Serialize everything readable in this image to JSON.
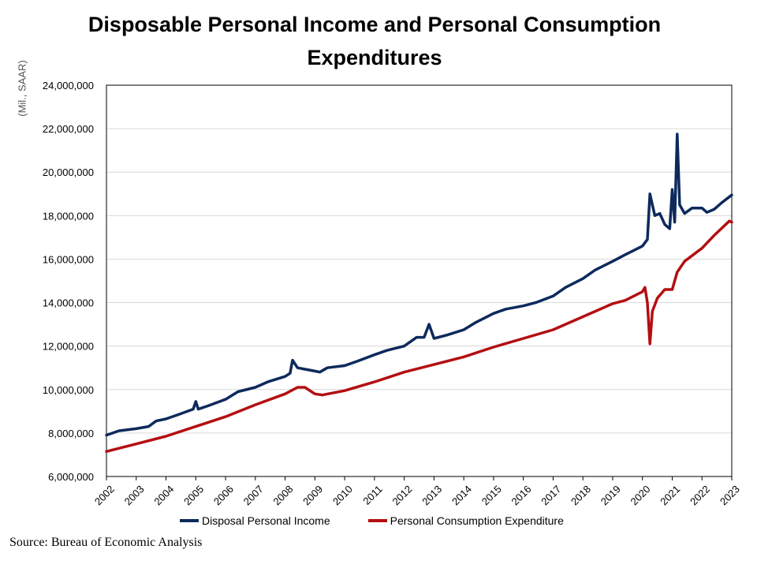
{
  "chart_data": {
    "type": "line",
    "title": "Disposable Personal Income and Personal Consumption Expenditures",
    "title_line1": "Disposable Personal Income and Personal Consumption",
    "title_line2": "Expenditures",
    "ylabel": "(Mil., SAAR)",
    "xlabel": "",
    "ylim": [
      6000000,
      24000000
    ],
    "yticks": [
      "6,000,000",
      "8,000,000",
      "10,000,000",
      "12,000,000",
      "14,000,000",
      "16,000,000",
      "18,000,000",
      "20,000,000",
      "22,000,000",
      "24,000,000"
    ],
    "ytick_values": [
      6000000,
      8000000,
      10000000,
      12000000,
      14000000,
      16000000,
      18000000,
      20000000,
      22000000,
      24000000
    ],
    "xlim": [
      "2002-01",
      "2023-01"
    ],
    "xticks": [
      "2002",
      "2003",
      "2004",
      "2005",
      "2006",
      "2007",
      "2008",
      "2009",
      "2010",
      "2011",
      "2012",
      "2013",
      "2014",
      "2015",
      "2016",
      "2017",
      "2018",
      "2019",
      "2020",
      "2021",
      "2022",
      "2023"
    ],
    "grid": true,
    "legend_position": "bottom",
    "series": [
      {
        "name": "Disposal Personal Income",
        "color": "#0d2a5c",
        "points": [
          [
            "2002-01",
            7900000
          ],
          [
            "2002-06",
            8100000
          ],
          [
            "2003-01",
            8200000
          ],
          [
            "2003-06",
            8300000
          ],
          [
            "2003-09",
            8550000
          ],
          [
            "2004-01",
            8650000
          ],
          [
            "2004-06",
            8850000
          ],
          [
            "2004-12",
            9100000
          ],
          [
            "2005-01",
            9450000
          ],
          [
            "2005-02",
            9100000
          ],
          [
            "2005-06",
            9250000
          ],
          [
            "2006-01",
            9550000
          ],
          [
            "2006-06",
            9900000
          ],
          [
            "2007-01",
            10100000
          ],
          [
            "2007-06",
            10350000
          ],
          [
            "2008-01",
            10600000
          ],
          [
            "2008-03",
            10750000
          ],
          [
            "2008-04",
            11350000
          ],
          [
            "2008-06",
            11000000
          ],
          [
            "2009-01",
            10850000
          ],
          [
            "2009-03",
            10800000
          ],
          [
            "2009-06",
            11000000
          ],
          [
            "2010-01",
            11100000
          ],
          [
            "2010-06",
            11300000
          ],
          [
            "2011-01",
            11600000
          ],
          [
            "2011-06",
            11800000
          ],
          [
            "2012-01",
            12000000
          ],
          [
            "2012-06",
            12400000
          ],
          [
            "2012-09",
            12400000
          ],
          [
            "2012-11",
            13000000
          ],
          [
            "2013-01",
            12350000
          ],
          [
            "2013-06",
            12500000
          ],
          [
            "2014-01",
            12750000
          ],
          [
            "2014-06",
            13100000
          ],
          [
            "2015-01",
            13500000
          ],
          [
            "2015-06",
            13700000
          ],
          [
            "2016-01",
            13850000
          ],
          [
            "2016-06",
            14000000
          ],
          [
            "2017-01",
            14300000
          ],
          [
            "2017-06",
            14700000
          ],
          [
            "2018-01",
            15100000
          ],
          [
            "2018-06",
            15500000
          ],
          [
            "2019-01",
            15900000
          ],
          [
            "2019-06",
            16200000
          ],
          [
            "2020-01",
            16600000
          ],
          [
            "2020-03",
            16900000
          ],
          [
            "2020-04",
            19000000
          ],
          [
            "2020-06",
            18000000
          ],
          [
            "2020-08",
            18100000
          ],
          [
            "2020-10",
            17600000
          ],
          [
            "2020-12",
            17400000
          ],
          [
            "2021-01",
            19200000
          ],
          [
            "2021-02",
            17700000
          ],
          [
            "2021-03",
            21750000
          ],
          [
            "2021-04",
            18500000
          ],
          [
            "2021-06",
            18100000
          ],
          [
            "2021-09",
            18350000
          ],
          [
            "2022-01",
            18350000
          ],
          [
            "2022-03",
            18150000
          ],
          [
            "2022-06",
            18300000
          ],
          [
            "2022-09",
            18600000
          ],
          [
            "2023-01",
            18950000
          ]
        ]
      },
      {
        "name": "Personal Consumption Expenditure",
        "color": "#b30f12",
        "points": [
          [
            "2002-01",
            7150000
          ],
          [
            "2003-01",
            7500000
          ],
          [
            "2004-01",
            7850000
          ],
          [
            "2005-01",
            8300000
          ],
          [
            "2006-01",
            8750000
          ],
          [
            "2007-01",
            9300000
          ],
          [
            "2008-01",
            9800000
          ],
          [
            "2008-06",
            10100000
          ],
          [
            "2008-09",
            10100000
          ],
          [
            "2009-01",
            9800000
          ],
          [
            "2009-04",
            9750000
          ],
          [
            "2010-01",
            9950000
          ],
          [
            "2011-01",
            10350000
          ],
          [
            "2012-01",
            10800000
          ],
          [
            "2013-01",
            11150000
          ],
          [
            "2014-01",
            11500000
          ],
          [
            "2015-01",
            11950000
          ],
          [
            "2016-01",
            12350000
          ],
          [
            "2017-01",
            12750000
          ],
          [
            "2018-01",
            13350000
          ],
          [
            "2019-01",
            13950000
          ],
          [
            "2019-06",
            14100000
          ],
          [
            "2020-01",
            14500000
          ],
          [
            "2020-02",
            14700000
          ],
          [
            "2020-03",
            14000000
          ],
          [
            "2020-04",
            12100000
          ],
          [
            "2020-05",
            13600000
          ],
          [
            "2020-07",
            14200000
          ],
          [
            "2020-10",
            14600000
          ],
          [
            "2021-01",
            14600000
          ],
          [
            "2021-03",
            15400000
          ],
          [
            "2021-06",
            15900000
          ],
          [
            "2022-01",
            16500000
          ],
          [
            "2022-06",
            17100000
          ],
          [
            "2022-12",
            17750000
          ],
          [
            "2023-01",
            17700000
          ]
        ]
      }
    ]
  },
  "source": "Source: Bureau of Economic Analysis"
}
